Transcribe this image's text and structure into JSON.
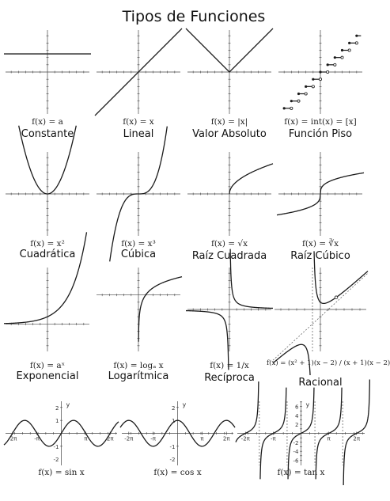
{
  "title": "Tipos de Funciones",
  "colors": {
    "axis": "#444444",
    "curve": "#1a1a1a",
    "asymptote": "#555555",
    "text": "#111111"
  },
  "graphs": [
    {
      "id": "constante",
      "formula": "f(x) = a",
      "name": "Constante"
    },
    {
      "id": "lineal",
      "formula": "f(x) = x",
      "name": "Lineal"
    },
    {
      "id": "valor-absoluto",
      "formula": "f(x) = |x|",
      "name": "Valor Absoluto"
    },
    {
      "id": "funcion-piso",
      "formula": "f(x) = int(x) = [x]",
      "name": "Función Piso"
    },
    {
      "id": "cuadratica",
      "formula": "f(x) = x²",
      "name": "Cuadrática"
    },
    {
      "id": "cubica",
      "formula": "f(x) = x³",
      "name": "Cúbica"
    },
    {
      "id": "raiz-cuadrada",
      "formula": "f(x) = √x",
      "name": "Raíz Cuadrada"
    },
    {
      "id": "raiz-cubica",
      "formula": "f(x) = ∛x",
      "name": "Raíz Cúbico"
    },
    {
      "id": "exponencial",
      "formula": "f(x) = aˣ",
      "name": "Exponencial"
    },
    {
      "id": "logaritmica",
      "formula": "f(x) = logₐ x",
      "name": "Logarítmica"
    },
    {
      "id": "reciproca",
      "formula": "f(x) = 1/x",
      "name": "Recíproca"
    },
    {
      "id": "racional",
      "formula": "f(x) = (x² + 1)(x − 2) / (x + 1)(x − 2)",
      "name": "Racional"
    },
    {
      "id": "seno",
      "formula": "f(x) = sin x",
      "name": ""
    },
    {
      "id": "coseno",
      "formula": "f(x) = cos x",
      "name": ""
    },
    {
      "id": "tangente",
      "formula": "f(x) = tan x",
      "name": ""
    }
  ],
  "trig_labels": {
    "seno": {
      "y_ticks": [
        "2",
        "1",
        "-1",
        "-2"
      ],
      "x_ticks": [
        "-2π",
        "-π",
        "π",
        "2π"
      ],
      "axis": "y"
    },
    "coseno": {
      "y_ticks": [
        "2",
        "1",
        "-1",
        "-2"
      ],
      "x_ticks": [
        "-2π",
        "-π",
        "π",
        "2π"
      ],
      "axis": "y"
    },
    "tangente": {
      "y_ticks": [
        "6",
        "4",
        "2",
        "-2",
        "-4",
        "-6"
      ],
      "x_ticks": [
        "-2π",
        "-π",
        "π",
        "2π"
      ],
      "axis": "y"
    }
  }
}
